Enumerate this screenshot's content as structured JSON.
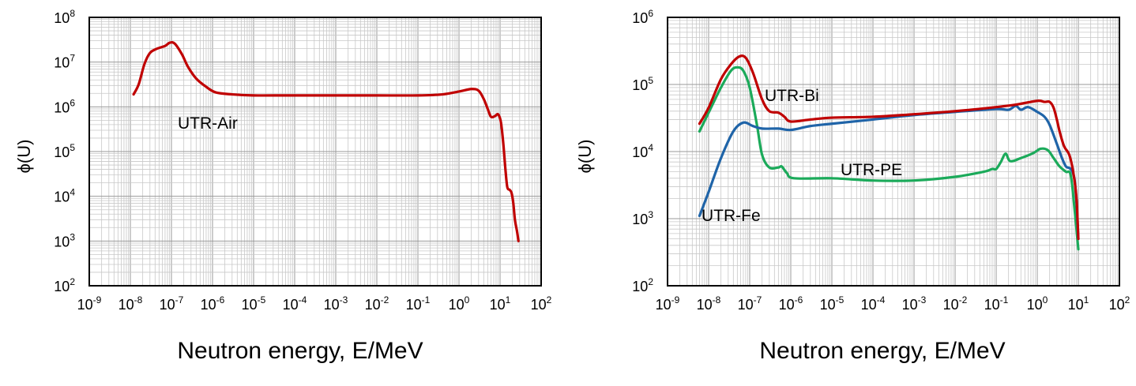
{
  "chart_data": [
    {
      "type": "line",
      "xlabel": "Neutron energy, E/MeV",
      "ylabel": "ϕ(U)",
      "x_scale": "log",
      "y_scale": "log",
      "xlim": [
        1e-09,
        100
      ],
      "ylim": [
        100,
        100000000.0
      ],
      "x_ticks": [
        "10-9",
        "10-8",
        "10-7",
        "10-6",
        "10-5",
        "10-4",
        "10-3",
        "10-2",
        "10-1",
        "100",
        "101",
        "102"
      ],
      "y_ticks": [
        "102",
        "103",
        "104",
        "105",
        "106",
        "107",
        "108"
      ],
      "grid": true,
      "series": [
        {
          "name": "UTR-Air",
          "color": "#C00000",
          "points": [
            [
              1.2e-08,
              1900000.0
            ],
            [
              1.6e-08,
              3200000.0
            ],
            [
              2.2e-08,
              9000000.0
            ],
            [
              3e-08,
              16000000.0
            ],
            [
              4.5e-08,
              20000000.0
            ],
            [
              7e-08,
              23000000.0
            ],
            [
              9e-08,
              27000000.0
            ],
            [
              1.2e-07,
              26000000.0
            ],
            [
              1.8e-07,
              15000000.0
            ],
            [
              2.5e-07,
              8000000.0
            ],
            [
              4e-07,
              4300000.0
            ],
            [
              7e-07,
              2800000.0
            ],
            [
              1.2e-06,
              2100000.0
            ],
            [
              3e-06,
              1900000.0
            ],
            [
              1e-05,
              1800000.0
            ],
            [
              5e-05,
              1800000.0
            ],
            [
              0.0001,
              1800000.0
            ],
            [
              0.001,
              1800000.0
            ],
            [
              0.01,
              1800000.0
            ],
            [
              0.1,
              1800000.0
            ],
            [
              0.4,
              1900000.0
            ],
            [
              1,
              2200000.0
            ],
            [
              2,
              2500000.0
            ],
            [
              3,
              2300000.0
            ],
            [
              4,
              1500000.0
            ],
            [
              5,
              900000.0
            ],
            [
              6,
              600000.0
            ],
            [
              7.5,
              620000.0
            ],
            [
              9,
              680000.0
            ],
            [
              10.5,
              450000.0
            ],
            [
              12,
              150000.0
            ],
            [
              13.5,
              40000.0
            ],
            [
              15,
              16000.0
            ],
            [
              17,
              14000.0
            ],
            [
              19,
              12000.0
            ],
            [
              21,
              7000.0
            ],
            [
              23,
              3000.0
            ],
            [
              26,
              1600.0
            ],
            [
              28,
              1000.0
            ]
          ]
        }
      ],
      "annotations": [
        "UTR-Air"
      ]
    },
    {
      "type": "line",
      "xlabel": "Neutron energy, E/MeV",
      "ylabel": "ϕ(U)",
      "x_scale": "log",
      "y_scale": "log",
      "xlim": [
        1e-09,
        100
      ],
      "ylim": [
        100,
        1000000.0
      ],
      "x_ticks": [
        "10-9",
        "10-8",
        "10-7",
        "10-6",
        "10-5",
        "10-4",
        "10-3",
        "10-2",
        "10-1",
        "100",
        "101",
        "102"
      ],
      "y_ticks": [
        "102",
        "103",
        "104",
        "105",
        "106"
      ],
      "grid": true,
      "series": [
        {
          "name": "UTR-Bi",
          "color": "#C00000",
          "points": [
            [
              6e-09,
              26000.0
            ],
            [
              1e-08,
              45000.0
            ],
            [
              2e-08,
              120000.0
            ],
            [
              3.5e-08,
              200000.0
            ],
            [
              5.5e-08,
              260000.0
            ],
            [
              8e-08,
              250000.0
            ],
            [
              1.2e-07,
              150000.0
            ],
            [
              2e-07,
              60000.0
            ],
            [
              3e-07,
              40000.0
            ],
            [
              5e-07,
              38000.0
            ],
            [
              7e-07,
              33000.0
            ],
            [
              1e-06,
              28000.0
            ],
            [
              3e-06,
              30000.0
            ],
            [
              1e-05,
              32000.0
            ],
            [
              0.0001,
              33000.0
            ],
            [
              0.001,
              36000.0
            ],
            [
              0.01,
              40000.0
            ],
            [
              0.1,
              46000.0
            ],
            [
              0.3,
              50000.0
            ],
            [
              1,
              57000.0
            ],
            [
              1.5,
              55000.0
            ],
            [
              2,
              55000.0
            ],
            [
              2.5,
              45000.0
            ],
            [
              3,
              30000.0
            ],
            [
              3.5,
              20000.0
            ],
            [
              4.5,
              12000.0
            ],
            [
              6,
              9000.0
            ],
            [
              7.5,
              5000.0
            ],
            [
              9,
              2000.0
            ],
            [
              10,
              500
            ]
          ]
        },
        {
          "name": "UTR-Fe",
          "color": "#1F64A8",
          "points": [
            [
              6e-09,
              1100.0
            ],
            [
              1e-08,
              2500.0
            ],
            [
              2e-08,
              8000.0
            ],
            [
              4e-08,
              20000.0
            ],
            [
              7e-08,
              27000.0
            ],
            [
              1.2e-07,
              24000.0
            ],
            [
              2e-07,
              22000.0
            ],
            [
              5e-07,
              22000.0
            ],
            [
              1e-06,
              21000.0
            ],
            [
              3e-06,
              24000.0
            ],
            [
              1e-05,
              26000.0
            ],
            [
              0.0001,
              30000.0
            ],
            [
              0.001,
              35000.0
            ],
            [
              0.01,
              39000.0
            ],
            [
              0.1,
              43000.0
            ],
            [
              0.2,
              42000.0
            ],
            [
              0.3,
              48000.0
            ],
            [
              0.4,
              42000.0
            ],
            [
              0.6,
              46000.0
            ],
            [
              1,
              39000.0
            ],
            [
              1.5,
              33000.0
            ],
            [
              2,
              25000.0
            ],
            [
              3,
              13000.0
            ],
            [
              4,
              8000.0
            ],
            [
              5,
              6000.0
            ],
            [
              6.5,
              5500.0
            ],
            [
              8,
              4000.0
            ],
            [
              9,
              1800.0
            ],
            [
              10,
              500
            ]
          ]
        },
        {
          "name": "UTR-PE",
          "color": "#1BAA5A",
          "points": [
            [
              6e-09,
              20000.0
            ],
            [
              1e-08,
              38000.0
            ],
            [
              2e-08,
              90000.0
            ],
            [
              3.5e-08,
              160000.0
            ],
            [
              5e-08,
              180000.0
            ],
            [
              7e-08,
              160000.0
            ],
            [
              1e-07,
              90000.0
            ],
            [
              1.5e-07,
              25000.0
            ],
            [
              2e-07,
              9000.0
            ],
            [
              3e-07,
              5800.0
            ],
            [
              5e-07,
              5800.0
            ],
            [
              6e-07,
              6000.0
            ],
            [
              8e-07,
              4800.0
            ],
            [
              1.2e-06,
              4000.0
            ],
            [
              1e-05,
              4000.0
            ],
            [
              0.0001,
              3700.0
            ],
            [
              0.001,
              3700.0
            ],
            [
              0.01,
              4200.0
            ],
            [
              0.05,
              5000.0
            ],
            [
              0.08,
              5500.0
            ],
            [
              0.1,
              5500.0
            ],
            [
              0.13,
              7000.0
            ],
            [
              0.17,
              9300.0
            ],
            [
              0.22,
              7200.0
            ],
            [
              0.4,
              8000.0
            ],
            [
              0.8,
              9500.0
            ],
            [
              1.2,
              11000.0
            ],
            [
              1.8,
              10500.0
            ],
            [
              2.5,
              8000.0
            ],
            [
              3.5,
              6000.0
            ],
            [
              5,
              5000.0
            ],
            [
              6.5,
              4500.0
            ],
            [
              8,
              1500.0
            ],
            [
              10,
              350
            ]
          ]
        }
      ],
      "annotations": [
        "UTR-Bi",
        "UTR-PE",
        "UTR-Fe"
      ]
    }
  ]
}
